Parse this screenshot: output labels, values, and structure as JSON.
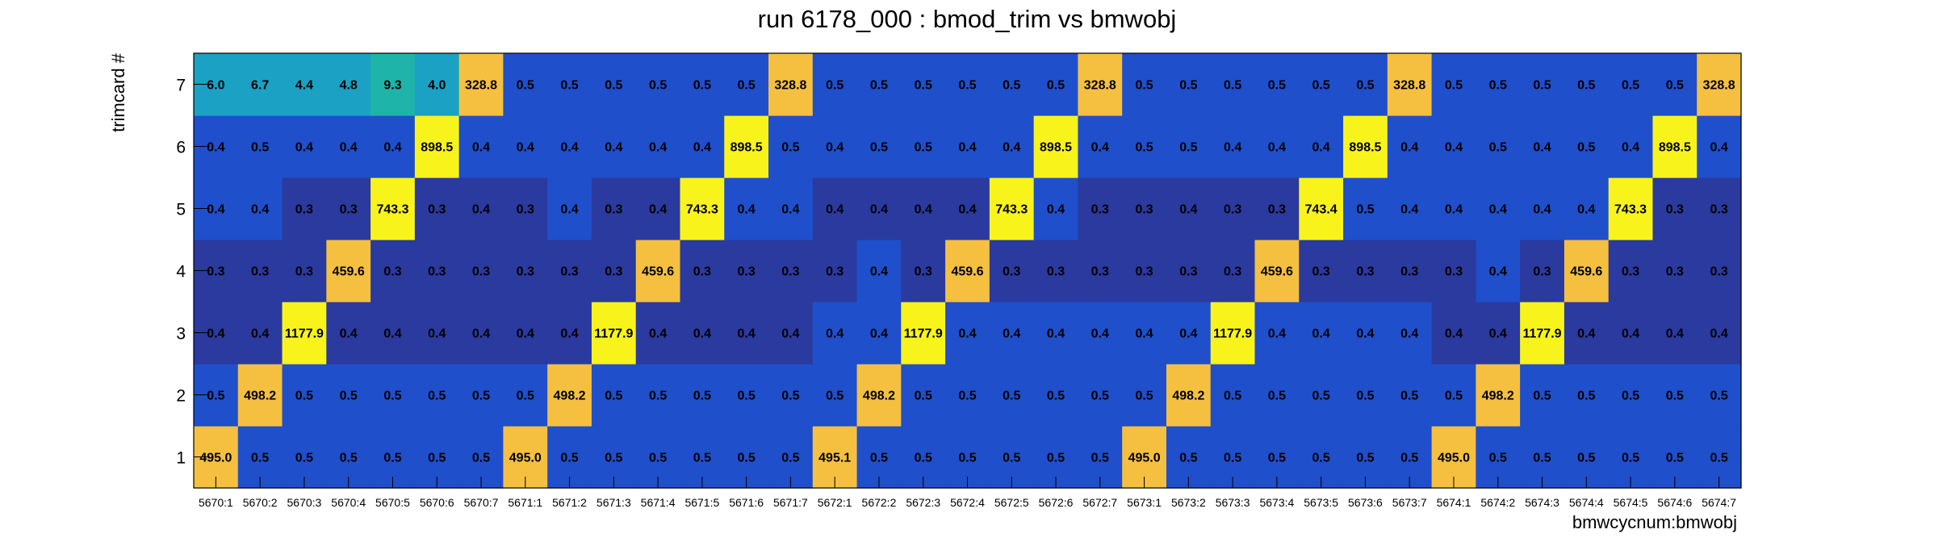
{
  "chart_data": {
    "type": "heatmap",
    "title": "run 6178_000 : bmod_trim vs bmwobj",
    "xlabel": "bmwcycnum:bmwobj",
    "ylabel": "trimcard #",
    "x_categories": [
      "5670:1",
      "5670:2",
      "5670:3",
      "5670:4",
      "5670:5",
      "5670:6",
      "5670:7",
      "5671:1",
      "5671:2",
      "5671:3",
      "5671:4",
      "5671:5",
      "5671:6",
      "5671:7",
      "5672:1",
      "5672:2",
      "5672:3",
      "5672:4",
      "5672:5",
      "5672:6",
      "5672:7",
      "5673:1",
      "5673:2",
      "5673:3",
      "5673:4",
      "5673:5",
      "5673:6",
      "5673:7",
      "5674:1",
      "5674:2",
      "5674:3",
      "5674:4",
      "5674:5",
      "5674:6",
      "5674:7"
    ],
    "y_categories": [
      "1",
      "2",
      "3",
      "4",
      "5",
      "6",
      "7"
    ],
    "value_labels": [
      [
        "495.0",
        "0.5",
        "0.5",
        "0.5",
        "0.5",
        "0.5",
        "0.5",
        "495.0",
        "0.5",
        "0.5",
        "0.5",
        "0.5",
        "0.5",
        "0.5",
        "495.1",
        "0.5",
        "0.5",
        "0.5",
        "0.5",
        "0.5",
        "0.5",
        "495.0",
        "0.5",
        "0.5",
        "0.5",
        "0.5",
        "0.5",
        "0.5",
        "495.0",
        "0.5",
        "0.5",
        "0.5",
        "0.5",
        "0.5",
        "0.5"
      ],
      [
        "0.5",
        "498.2",
        "0.5",
        "0.5",
        "0.5",
        "0.5",
        "0.5",
        "0.5",
        "498.2",
        "0.5",
        "0.5",
        "0.5",
        "0.5",
        "0.5",
        "0.5",
        "498.2",
        "0.5",
        "0.5",
        "0.5",
        "0.5",
        "0.5",
        "0.5",
        "498.2",
        "0.5",
        "0.5",
        "0.5",
        "0.5",
        "0.5",
        "0.5",
        "498.2",
        "0.5",
        "0.5",
        "0.5",
        "0.5",
        "0.5"
      ],
      [
        "0.4",
        "0.4",
        "1177.9",
        "0.4",
        "0.4",
        "0.4",
        "0.4",
        "0.4",
        "0.4",
        "1177.9",
        "0.4",
        "0.4",
        "0.4",
        "0.4",
        "0.4",
        "0.4",
        "1177.9",
        "0.4",
        "0.4",
        "0.4",
        "0.4",
        "0.4",
        "0.4",
        "1177.9",
        "0.4",
        "0.4",
        "0.4",
        "0.4",
        "0.4",
        "0.4",
        "1177.9",
        "0.4",
        "0.4",
        "0.4",
        "0.4"
      ],
      [
        "0.3",
        "0.3",
        "0.3",
        "459.6",
        "0.3",
        "0.3",
        "0.3",
        "0.3",
        "0.3",
        "0.3",
        "459.6",
        "0.3",
        "0.3",
        "0.3",
        "0.3",
        "0.4",
        "0.3",
        "459.6",
        "0.3",
        "0.3",
        "0.3",
        "0.3",
        "0.3",
        "0.3",
        "459.6",
        "0.3",
        "0.3",
        "0.3",
        "0.3",
        "0.4",
        "0.3",
        "459.6",
        "0.3",
        "0.3",
        "0.3"
      ],
      [
        "0.4",
        "0.4",
        "0.3",
        "0.3",
        "743.3",
        "0.3",
        "0.4",
        "0.3",
        "0.4",
        "0.3",
        "0.4",
        "743.3",
        "0.4",
        "0.4",
        "0.4",
        "0.4",
        "0.4",
        "0.4",
        "743.3",
        "0.4",
        "0.3",
        "0.3",
        "0.4",
        "0.3",
        "0.3",
        "743.4",
        "0.5",
        "0.4",
        "0.4",
        "0.4",
        "0.4",
        "0.4",
        "743.3",
        "0.3",
        "0.3"
      ],
      [
        "0.4",
        "0.5",
        "0.4",
        "0.4",
        "0.4",
        "898.5",
        "0.4",
        "0.4",
        "0.4",
        "0.4",
        "0.4",
        "0.4",
        "898.5",
        "0.5",
        "0.4",
        "0.5",
        "0.5",
        "0.4",
        "0.4",
        "898.5",
        "0.4",
        "0.5",
        "0.5",
        "0.4",
        "0.4",
        "0.4",
        "898.5",
        "0.4",
        "0.4",
        "0.5",
        "0.4",
        "0.5",
        "0.4",
        "898.5",
        "0.4"
      ],
      [
        "6.0",
        "6.7",
        "4.4",
        "4.8",
        "9.3",
        "4.0",
        "328.8",
        "0.5",
        "0.5",
        "0.5",
        "0.5",
        "0.5",
        "0.5",
        "328.8",
        "0.5",
        "0.5",
        "0.5",
        "0.5",
        "0.5",
        "0.5",
        "328.8",
        "0.5",
        "0.5",
        "0.5",
        "0.5",
        "0.5",
        "0.5",
        "328.8",
        "0.5",
        "0.5",
        "0.5",
        "0.5",
        "0.5",
        "0.5",
        "328.8"
      ]
    ],
    "legend": "none",
    "grid": false,
    "palette": {
      "low_dark": "#2a3a9e",
      "low": "#1f4fcb",
      "teal": "#1aa1c4",
      "green_teal": "#1fb4a9",
      "orange": "#f5c040",
      "yellow": "#f9f31c"
    }
  }
}
